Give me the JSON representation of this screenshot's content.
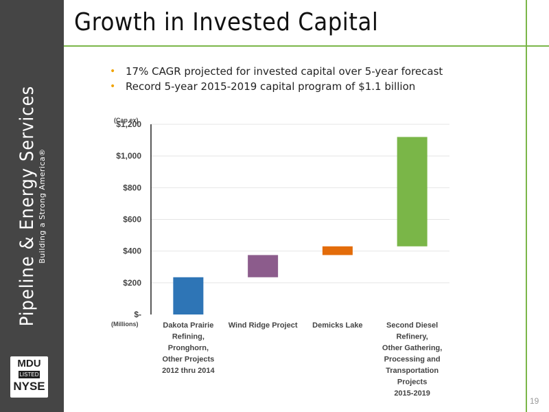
{
  "slide": {
    "title": "Growth in Invested Capital",
    "page_number": "19",
    "bullets": [
      "17% CAGR projected for invested capital over 5-year forecast",
      "Record 5-year 2015-2019 capital program of $1.1 billion"
    ],
    "bullet_color": "#f0a300",
    "accent_color": "#7ab648"
  },
  "sidebar": {
    "company": "Pipeline & Energy Services",
    "tagline": "Building a Strong America®",
    "logo": {
      "top": "MDU",
      "middle": "LISTED",
      "bottom": "NYSE"
    },
    "background": "#454545"
  },
  "chart_data": {
    "type": "bar",
    "subtype": "waterfall",
    "unit_label_top": "(Cap ex)",
    "unit_label_bottom": "(Millions)",
    "ylim": [
      0,
      1200
    ],
    "yticks": [
      0,
      200,
      400,
      600,
      800,
      1000,
      1200
    ],
    "ytick_labels": [
      "$-",
      "$200",
      "$400",
      "$600",
      "$800",
      "$1,000",
      "$1,200"
    ],
    "grid": true,
    "categories": [
      [
        "Dakota Prairie",
        "Refining,",
        "Pronghorn,",
        "Other Projects",
        "2012 thru 2014"
      ],
      [
        "Wind Ridge Project"
      ],
      [
        "Demicks Lake"
      ],
      [
        "Second Diesel",
        "Refinery,",
        "Other Gathering,",
        "Processing and",
        "Transportation",
        "Projects",
        "2015-2019"
      ]
    ],
    "bars": [
      {
        "base": 0,
        "top": 235,
        "color": "#2e75b6"
      },
      {
        "base": 235,
        "top": 375,
        "color": "#8c5c8c"
      },
      {
        "base": 375,
        "top": 430,
        "color": "#e36c0a"
      },
      {
        "base": 430,
        "top": 1120,
        "color": "#7ab648"
      }
    ]
  }
}
